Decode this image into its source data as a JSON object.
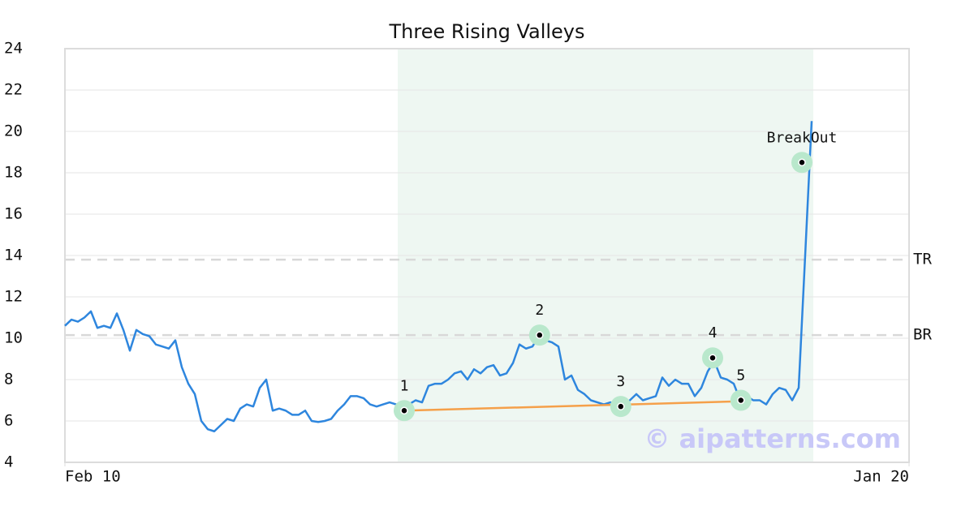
{
  "chart_data": {
    "type": "line",
    "title": "Three Rising Valleys",
    "x": [
      0,
      1,
      2,
      3,
      4,
      5,
      6,
      7,
      8,
      9,
      10,
      11,
      12,
      13,
      14,
      15,
      16,
      17,
      18,
      19,
      20,
      21,
      22,
      23,
      24,
      25,
      26,
      27,
      28,
      29,
      30,
      31,
      32,
      33,
      34,
      35,
      36,
      37,
      38,
      39,
      40,
      41,
      42,
      43,
      44,
      45,
      46,
      47,
      48,
      49,
      50,
      51,
      52,
      53,
      54,
      55,
      56,
      57,
      58,
      59,
      60,
      61,
      62,
      63,
      64,
      65,
      66,
      67,
      68,
      69,
      70,
      71,
      72,
      73,
      74,
      75,
      76,
      77,
      78,
      79,
      80,
      81,
      82,
      83,
      84,
      85,
      86,
      87,
      88,
      89,
      90,
      91,
      92,
      93,
      94,
      95,
      96,
      97,
      98,
      99,
      100,
      101,
      102,
      103,
      104,
      105,
      106,
      107,
      108,
      109,
      110,
      111,
      112,
      113,
      114,
      115
    ],
    "series": [
      {
        "color": "#2e86de",
        "values": [
          10.6,
          10.9,
          10.8,
          11.0,
          11.3,
          10.5,
          10.6,
          10.5,
          11.2,
          10.4,
          9.4,
          10.4,
          10.2,
          10.1,
          9.7,
          9.6,
          9.5,
          9.9,
          8.6,
          7.8,
          7.3,
          6.0,
          5.6,
          5.5,
          5.8,
          6.1,
          6.0,
          6.6,
          6.8,
          6.7,
          7.6,
          8.0,
          6.5,
          6.6,
          6.5,
          6.3,
          6.3,
          6.5,
          6.0,
          5.95,
          6.0,
          6.1,
          6.5,
          6.8,
          7.2,
          7.2,
          7.1,
          6.8,
          6.7,
          6.8,
          6.9,
          6.8,
          6.6,
          6.8,
          7.0,
          6.9,
          7.7,
          7.8,
          7.8,
          8.0,
          8.3,
          8.4,
          8.0,
          8.5,
          8.3,
          8.6,
          8.7,
          8.2,
          8.3,
          8.8,
          9.7,
          9.5,
          9.6,
          10.1,
          9.9,
          9.8,
          9.6,
          8.0,
          8.2,
          7.5,
          7.3,
          7.0,
          6.9,
          6.8,
          6.9,
          6.8,
          6.7,
          7.0,
          7.3,
          7.0,
          7.1,
          7.2,
          8.1,
          7.7,
          8.0,
          7.8,
          7.8,
          7.2,
          7.6,
          8.4,
          8.9,
          8.1,
          8.0,
          7.8,
          7.0,
          7.2,
          7.0,
          7.0,
          6.8,
          7.3,
          7.6,
          7.5,
          7.0,
          7.6,
          14.0,
          20.5
        ]
      }
    ],
    "xlim": [
      0,
      130
    ],
    "xticks": [
      {
        "value": 0,
        "label": "Feb 10"
      },
      {
        "value": 130,
        "label": "Jan 20"
      }
    ],
    "ylim": [
      4,
      24
    ],
    "yticks": [
      4,
      6,
      8,
      10,
      12,
      14,
      16,
      18,
      20,
      22,
      24
    ],
    "grid": true,
    "shaded_range": {
      "x": [
        51.25,
        115.25
      ],
      "color": "#eef7f2"
    },
    "levels": [
      {
        "label": "TR",
        "value": 13.8
      },
      {
        "label": "BR",
        "value": 10.15
      }
    ],
    "trendline": {
      "x": [
        52.25,
        104.1
      ],
      "y": [
        6.5,
        6.95
      ],
      "color": "#f5a04a"
    },
    "points": [
      {
        "label": "1",
        "x": 52.25,
        "y": 6.5
      },
      {
        "label": "2",
        "x": 73.1,
        "y": 10.15
      },
      {
        "label": "3",
        "x": 85.6,
        "y": 6.7
      },
      {
        "label": "4",
        "x": 99.75,
        "y": 9.05
      },
      {
        "label": "5",
        "x": 104.1,
        "y": 7.0
      },
      {
        "label": "BreakOut",
        "x": 113.5,
        "y": 18.5
      }
    ],
    "watermark": "© aipatterns.com"
  }
}
